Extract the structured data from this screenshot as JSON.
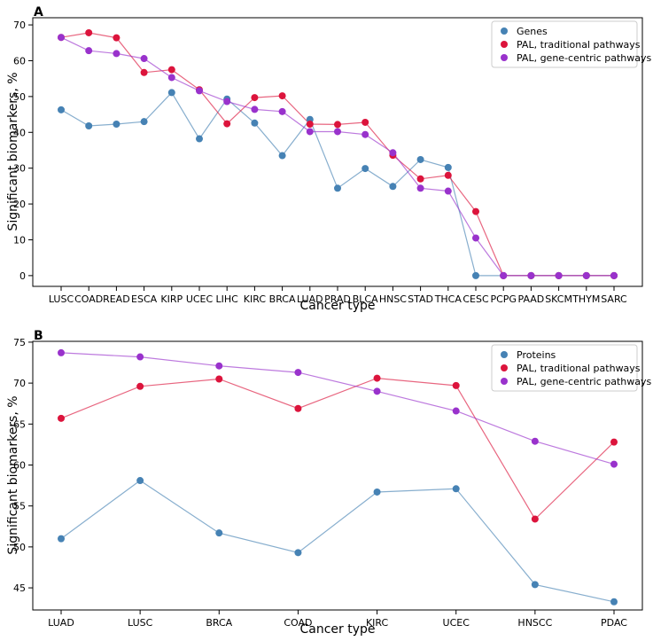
{
  "chart_data": [
    {
      "type": "line",
      "panel": "A",
      "xlabel": "Cancer type",
      "ylabel": "Significant biomarkers, %",
      "ylim": [
        -3,
        72
      ],
      "yticks": [
        0,
        10,
        20,
        30,
        40,
        50,
        60,
        70
      ],
      "legend_position": "top-right",
      "categories": [
        "LUSC",
        "COAD",
        "READ",
        "ESCA",
        "KIRP",
        "UCEC",
        "LIHC",
        "KIRC",
        "BRCA",
        "LUAD",
        "PRAD",
        "BLCA",
        "HNSC",
        "STAD",
        "THCA",
        "CESC",
        "PCPG",
        "PAAD",
        "SKCM",
        "THYM",
        "SARC"
      ],
      "series": [
        {
          "name": "Genes",
          "color": "#4682b4",
          "values": [
            46.3,
            41.8,
            42.3,
            43.0,
            51.1,
            38.2,
            49.3,
            42.6,
            33.5,
            43.6,
            24.4,
            29.9,
            24.9,
            32.4,
            30.2,
            0,
            0,
            0,
            0,
            0,
            0
          ]
        },
        {
          "name": "PAL, traditional pathways",
          "color": "#dc143c",
          "values": [
            66.5,
            67.8,
            66.4,
            56.7,
            57.5,
            51.9,
            42.4,
            49.7,
            50.2,
            42.3,
            42.2,
            42.8,
            33.6,
            27.0,
            28.0,
            17.9,
            0,
            0,
            0,
            0,
            0
          ]
        },
        {
          "name": "PAL, gene-centric pathways",
          "color": "#9932cc",
          "values": [
            66.5,
            62.8,
            62.0,
            60.6,
            55.3,
            51.6,
            48.6,
            46.4,
            45.8,
            40.2,
            40.2,
            39.4,
            34.3,
            24.4,
            23.6,
            10.5,
            0,
            0,
            0,
            0,
            0
          ]
        }
      ]
    },
    {
      "type": "line",
      "panel": "B",
      "xlabel": "Cancer type",
      "ylabel": "Significant biomarkers, %",
      "ylim": [
        42.3,
        75.1
      ],
      "yticks": [
        45,
        50,
        55,
        60,
        65,
        70,
        75
      ],
      "legend_position": "top-right",
      "categories": [
        "LUAD",
        "LUSC",
        "BRCA",
        "COAD",
        "KIRC",
        "UCEC",
        "HNSCC",
        "PDAC"
      ],
      "series": [
        {
          "name": "Proteins",
          "color": "#4682b4",
          "values": [
            51.0,
            58.1,
            51.7,
            49.3,
            56.7,
            57.1,
            45.4,
            43.3
          ]
        },
        {
          "name": "PAL, traditional pathways",
          "color": "#dc143c",
          "values": [
            65.7,
            69.6,
            70.5,
            66.9,
            70.6,
            69.7,
            53.4,
            62.8
          ]
        },
        {
          "name": "PAL, gene-centric pathways",
          "color": "#9932cc",
          "values": [
            73.7,
            73.2,
            72.1,
            71.3,
            69.0,
            66.6,
            62.9,
            60.1
          ]
        }
      ]
    }
  ]
}
